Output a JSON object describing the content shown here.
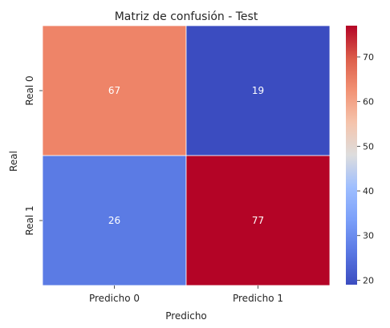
{
  "chart_data": {
    "type": "heatmap",
    "title": "Matriz de confusión - Test",
    "xlabel": "Predicho",
    "ylabel": "Real",
    "x_categories": [
      "Predicho 0",
      "Predicho 1"
    ],
    "y_categories": [
      "Real 0",
      "Real 1"
    ],
    "values": [
      [
        67,
        19
      ],
      [
        26,
        77
      ]
    ],
    "colormap": "coolwarm",
    "colorbar": {
      "min": 19,
      "max": 77,
      "ticks": [
        "20",
        "30",
        "40",
        "50",
        "60",
        "70"
      ]
    },
    "cell_colors": {
      "67": "#ee8468",
      "19": "#3b4cc0",
      "26": "#5b7be4",
      "77": "#b40426"
    },
    "grid": false
  }
}
